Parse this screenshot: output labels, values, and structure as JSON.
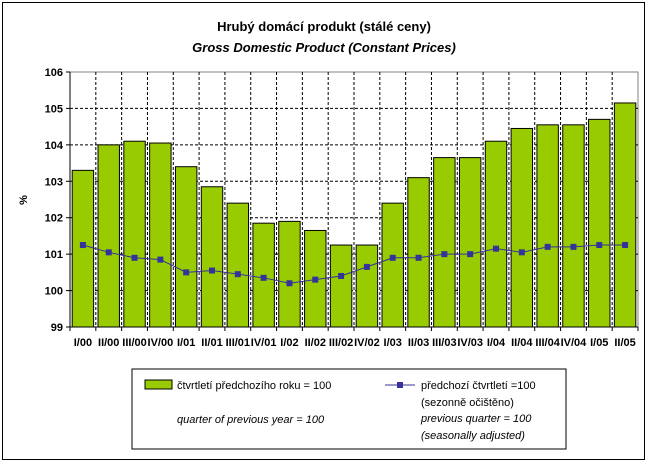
{
  "chart_data": {
    "type": "bar",
    "title": "Hrubý domácí produkt (stálé ceny)",
    "subtitle": "Gross Domestic Product (Constant Prices)",
    "xlabel": "",
    "ylabel": "%",
    "ylim": [
      99,
      106
    ],
    "yticks": [
      "99",
      "100",
      "101",
      "102",
      "103",
      "104",
      "105",
      "106"
    ],
    "grid": true,
    "categories": [
      "I/00",
      "II/00",
      "III/00",
      "IV/00",
      "I/01",
      "II/01",
      "III/01",
      "IV/01",
      "I/02",
      "II/02",
      "III/02",
      "IV/02",
      "I/03",
      "II/03",
      "III/03",
      "IV/03",
      "I/04",
      "II/04",
      "III/04",
      "IV/04",
      "I/05",
      "II/05"
    ],
    "series": [
      {
        "name": "čtvrtletí předchozího roku = 100",
        "name_en": "quarter of previous year = 100",
        "type": "bar",
        "color": "#99cc00",
        "values": [
          103.3,
          104.0,
          104.1,
          104.05,
          103.4,
          102.85,
          102.4,
          101.85,
          101.9,
          101.65,
          101.25,
          101.25,
          102.4,
          103.1,
          103.65,
          103.65,
          104.1,
          104.45,
          104.55,
          104.55,
          104.7,
          105.15
        ]
      },
      {
        "name": "předchozí čtvrtletí =100",
        "name_cz2": "(sezonně očištěno)",
        "name_en": "previous quarter = 100",
        "name_en2": "(seasonally adjusted)",
        "type": "line",
        "color": "#333399",
        "values": [
          101.25,
          101.05,
          100.9,
          100.85,
          100.5,
          100.55,
          100.45,
          100.35,
          100.2,
          100.3,
          100.4,
          100.65,
          100.9,
          100.9,
          101.0,
          101.0,
          101.15,
          101.05,
          101.2,
          101.2,
          101.25,
          101.25
        ]
      }
    ],
    "legend_position": "bottom"
  }
}
